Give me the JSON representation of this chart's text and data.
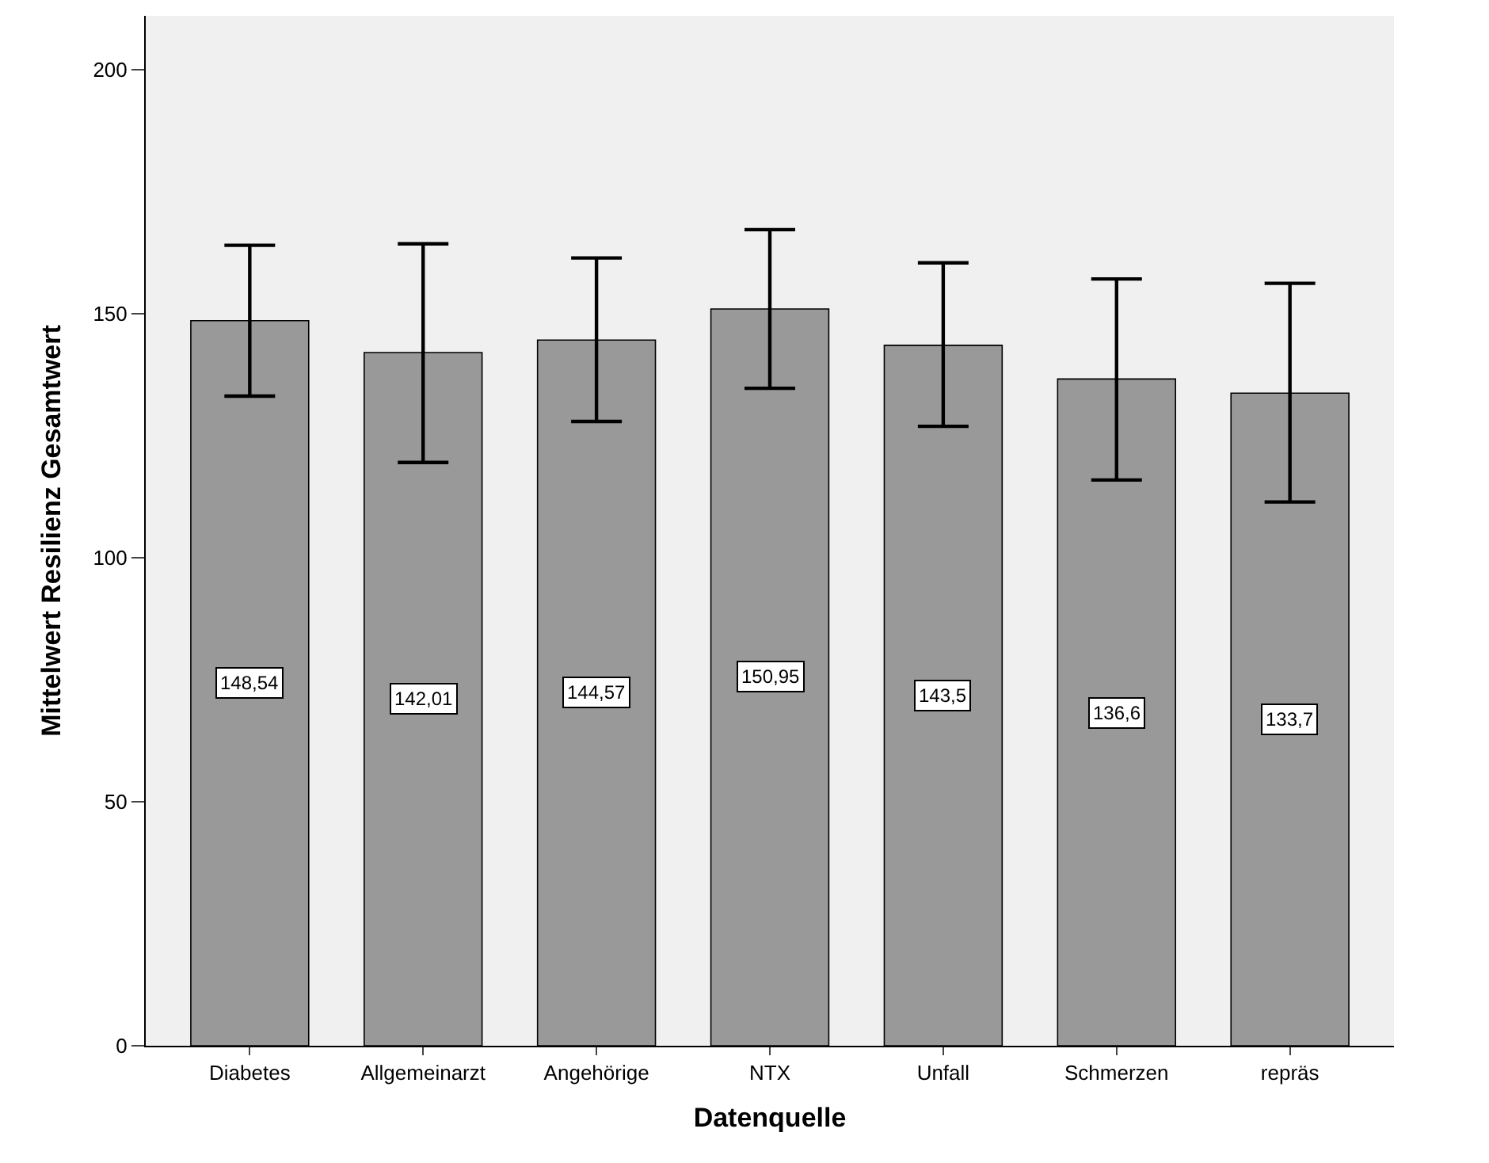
{
  "chart_data": {
    "type": "bar",
    "xlabel": "Datenquelle",
    "ylabel": "Mittelwert Resilienz Gesamtwert",
    "categories": [
      "Diabetes",
      "Allgemeinarzt",
      "Angehörige",
      "NTX",
      "Unfall",
      "Schmerzen",
      "repräs"
    ],
    "values": [
      148.54,
      142.01,
      144.57,
      150.95,
      143.5,
      136.6,
      133.7
    ],
    "value_labels": [
      "148,54",
      "142,01",
      "144,57",
      "150,95",
      "143,5",
      "136,6",
      "133,7"
    ],
    "errors": [
      [
        133.1,
        164.0
      ],
      [
        119.5,
        164.3
      ],
      [
        127.9,
        161.4
      ],
      [
        134.7,
        167.2
      ],
      [
        126.9,
        160.4
      ],
      [
        115.9,
        157.1
      ],
      [
        111.4,
        156.2
      ]
    ],
    "color": "#999999",
    "ylim": [
      0,
      211
    ],
    "yticks": [
      0,
      50,
      100,
      150,
      200
    ],
    "grid": false
  }
}
